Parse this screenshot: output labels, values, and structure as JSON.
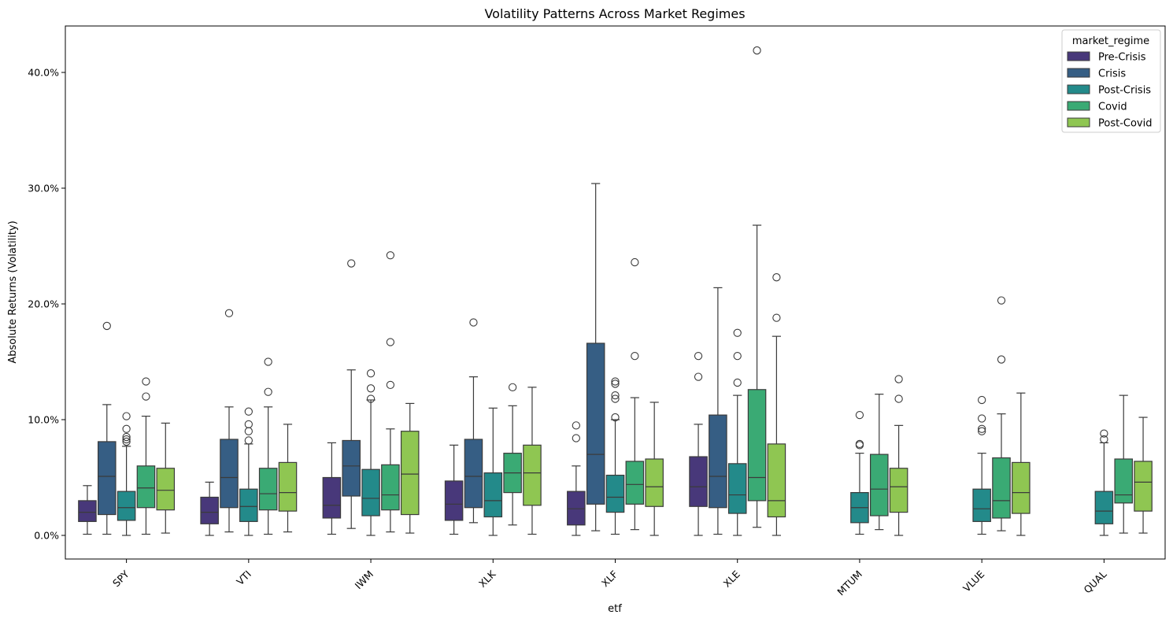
{
  "chart_data": {
    "type": "box",
    "title": "Volatility Patterns Across Market Regimes",
    "xlabel": "etf",
    "ylabel": "Absolute Returns (Volatility)",
    "categories": [
      "SPY",
      "VTI",
      "IWM",
      "XLK",
      "XLF",
      "XLE",
      "MTUM",
      "VLUE",
      "QUAL"
    ],
    "ylim": [
      -0.021,
      0.44
    ],
    "yticks": [
      0.0,
      0.1,
      0.2,
      0.3,
      0.4
    ],
    "ytick_labels": [
      "0.0%",
      "10.0%",
      "20.0%",
      "30.0%",
      "40.0%"
    ],
    "legend": {
      "title": "market_regime",
      "position": "top-right"
    },
    "grid": false,
    "series": [
      {
        "name": "Pre-Crisis",
        "color": "#48387a",
        "boxes": [
          {
            "category": "SPY",
            "whislo": 0.001,
            "q1": 0.012,
            "med": 0.02,
            "q3": 0.03,
            "whishi": 0.043,
            "fliers": []
          },
          {
            "category": "VTI",
            "whislo": 0.0,
            "q1": 0.01,
            "med": 0.02,
            "q3": 0.033,
            "whishi": 0.046,
            "fliers": []
          },
          {
            "category": "IWM",
            "whislo": 0.001,
            "q1": 0.015,
            "med": 0.026,
            "q3": 0.05,
            "whishi": 0.08,
            "fliers": []
          },
          {
            "category": "XLK",
            "whislo": 0.001,
            "q1": 0.013,
            "med": 0.027,
            "q3": 0.047,
            "whishi": 0.078,
            "fliers": []
          },
          {
            "category": "XLF",
            "whislo": 0.0,
            "q1": 0.009,
            "med": 0.023,
            "q3": 0.038,
            "whishi": 0.06,
            "fliers": [
              0.084,
              0.095
            ]
          },
          {
            "category": "XLE",
            "whislo": 0.0,
            "q1": 0.025,
            "med": 0.042,
            "q3": 0.068,
            "whishi": 0.096,
            "fliers": [
              0.137,
              0.155
            ]
          },
          null,
          null,
          null
        ]
      },
      {
        "name": "Crisis",
        "color": "#365e84",
        "boxes": [
          {
            "category": "SPY",
            "whislo": 0.001,
            "q1": 0.018,
            "med": 0.051,
            "q3": 0.081,
            "whishi": 0.113,
            "fliers": [
              0.181
            ]
          },
          {
            "category": "VTI",
            "whislo": 0.003,
            "q1": 0.024,
            "med": 0.05,
            "q3": 0.083,
            "whishi": 0.111,
            "fliers": [
              0.192
            ]
          },
          {
            "category": "IWM",
            "whislo": 0.006,
            "q1": 0.034,
            "med": 0.06,
            "q3": 0.082,
            "whishi": 0.143,
            "fliers": [
              0.235
            ]
          },
          {
            "category": "XLK",
            "whislo": 0.011,
            "q1": 0.024,
            "med": 0.051,
            "q3": 0.083,
            "whishi": 0.137,
            "fliers": [
              0.184
            ]
          },
          {
            "category": "XLF",
            "whislo": 0.004,
            "q1": 0.027,
            "med": 0.07,
            "q3": 0.166,
            "whishi": 0.304,
            "fliers": []
          },
          {
            "category": "XLE",
            "whislo": 0.001,
            "q1": 0.024,
            "med": 0.051,
            "q3": 0.104,
            "whishi": 0.214,
            "fliers": []
          },
          null,
          null,
          null
        ]
      },
      {
        "name": "Post-Crisis",
        "color": "#238a8a",
        "boxes": [
          {
            "category": "SPY",
            "whislo": 0.0,
            "q1": 0.013,
            "med": 0.024,
            "q3": 0.038,
            "whishi": 0.077,
            "fliers": [
              0.081,
              0.083,
              0.085,
              0.092,
              0.103
            ]
          },
          {
            "category": "VTI",
            "whislo": 0.0,
            "q1": 0.012,
            "med": 0.025,
            "q3": 0.04,
            "whishi": 0.079,
            "fliers": [
              0.082,
              0.09,
              0.096,
              0.107
            ]
          },
          {
            "category": "IWM",
            "whislo": 0.0,
            "q1": 0.017,
            "med": 0.032,
            "q3": 0.057,
            "whishi": 0.117,
            "fliers": [
              0.118,
              0.127,
              0.14
            ]
          },
          {
            "category": "XLK",
            "whislo": 0.0,
            "q1": 0.016,
            "med": 0.03,
            "q3": 0.054,
            "whishi": 0.11,
            "fliers": []
          },
          {
            "category": "XLF",
            "whislo": 0.001,
            "q1": 0.02,
            "med": 0.033,
            "q3": 0.052,
            "whishi": 0.1,
            "fliers": [
              0.102,
              0.118,
              0.121,
              0.131,
              0.133
            ]
          },
          {
            "category": "XLE",
            "whislo": 0.0,
            "q1": 0.019,
            "med": 0.035,
            "q3": 0.062,
            "whishi": 0.121,
            "fliers": [
              0.132,
              0.155,
              0.175
            ]
          },
          {
            "category": "MTUM",
            "whislo": 0.001,
            "q1": 0.011,
            "med": 0.024,
            "q3": 0.037,
            "whishi": 0.071,
            "fliers": [
              0.078,
              0.079,
              0.104
            ]
          },
          {
            "category": "VLUE",
            "whislo": 0.001,
            "q1": 0.012,
            "med": 0.023,
            "q3": 0.04,
            "whishi": 0.071,
            "fliers": [
              0.09,
              0.092,
              0.101,
              0.117
            ]
          },
          {
            "category": "QUAL",
            "whislo": 0.0,
            "q1": 0.01,
            "med": 0.021,
            "q3": 0.038,
            "whishi": 0.08,
            "fliers": [
              0.083,
              0.088
            ]
          }
        ]
      },
      {
        "name": "Covid",
        "color": "#3aaa74",
        "boxes": [
          {
            "category": "SPY",
            "whislo": 0.001,
            "q1": 0.024,
            "med": 0.041,
            "q3": 0.06,
            "whishi": 0.103,
            "fliers": [
              0.12,
              0.133
            ]
          },
          {
            "category": "VTI",
            "whislo": 0.001,
            "q1": 0.022,
            "med": 0.036,
            "q3": 0.058,
            "whishi": 0.111,
            "fliers": [
              0.124,
              0.15
            ]
          },
          {
            "category": "IWM",
            "whislo": 0.003,
            "q1": 0.022,
            "med": 0.035,
            "q3": 0.061,
            "whishi": 0.092,
            "fliers": [
              0.13,
              0.167,
              0.242
            ]
          },
          {
            "category": "XLK",
            "whislo": 0.009,
            "q1": 0.037,
            "med": 0.054,
            "q3": 0.071,
            "whishi": 0.112,
            "fliers": [
              0.128
            ]
          },
          {
            "category": "XLF",
            "whislo": 0.005,
            "q1": 0.027,
            "med": 0.044,
            "q3": 0.064,
            "whishi": 0.119,
            "fliers": [
              0.155,
              0.236
            ]
          },
          {
            "category": "XLE",
            "whislo": 0.007,
            "q1": 0.03,
            "med": 0.05,
            "q3": 0.126,
            "whishi": 0.268,
            "fliers": [
              0.419
            ]
          },
          {
            "category": "MTUM",
            "whislo": 0.005,
            "q1": 0.017,
            "med": 0.04,
            "q3": 0.07,
            "whishi": 0.122,
            "fliers": []
          },
          {
            "category": "VLUE",
            "whislo": 0.004,
            "q1": 0.015,
            "med": 0.03,
            "q3": 0.067,
            "whishi": 0.105,
            "fliers": [
              0.152,
              0.203
            ]
          },
          {
            "category": "QUAL",
            "whislo": 0.002,
            "q1": 0.028,
            "med": 0.035,
            "q3": 0.066,
            "whishi": 0.121,
            "fliers": []
          }
        ]
      },
      {
        "name": "Post-Covid",
        "color": "#8fc652",
        "boxes": [
          {
            "category": "SPY",
            "whislo": 0.002,
            "q1": 0.022,
            "med": 0.039,
            "q3": 0.058,
            "whishi": 0.097,
            "fliers": []
          },
          {
            "category": "VTI",
            "whislo": 0.003,
            "q1": 0.021,
            "med": 0.037,
            "q3": 0.063,
            "whishi": 0.096,
            "fliers": []
          },
          {
            "category": "IWM",
            "whislo": 0.002,
            "q1": 0.018,
            "med": 0.053,
            "q3": 0.09,
            "whishi": 0.114,
            "fliers": []
          },
          {
            "category": "XLK",
            "whislo": 0.001,
            "q1": 0.026,
            "med": 0.054,
            "q3": 0.078,
            "whishi": 0.128,
            "fliers": []
          },
          {
            "category": "XLF",
            "whislo": 0.0,
            "q1": 0.025,
            "med": 0.042,
            "q3": 0.066,
            "whishi": 0.115,
            "fliers": []
          },
          {
            "category": "XLE",
            "whislo": 0.0,
            "q1": 0.016,
            "med": 0.03,
            "q3": 0.079,
            "whishi": 0.172,
            "fliers": [
              0.188,
              0.223
            ]
          },
          {
            "category": "MTUM",
            "whislo": 0.0,
            "q1": 0.02,
            "med": 0.042,
            "q3": 0.058,
            "whishi": 0.095,
            "fliers": [
              0.118,
              0.135
            ]
          },
          {
            "category": "VLUE",
            "whislo": 0.0,
            "q1": 0.019,
            "med": 0.037,
            "q3": 0.063,
            "whishi": 0.123,
            "fliers": []
          },
          {
            "category": "QUAL",
            "whislo": 0.002,
            "q1": 0.021,
            "med": 0.046,
            "q3": 0.064,
            "whishi": 0.102,
            "fliers": []
          }
        ]
      }
    ]
  }
}
